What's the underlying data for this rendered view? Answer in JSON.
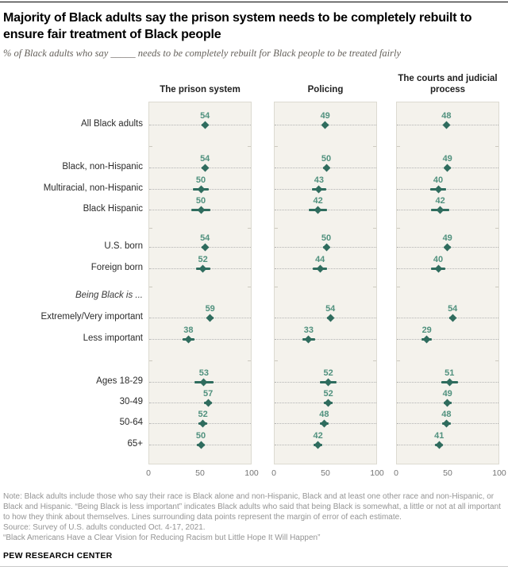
{
  "header": {
    "title": "Majority of Black adults say the prison system needs to be completely rebuilt to ensure fair treatment of Black people",
    "subtitle": "% of Black adults who say _____ needs to be completely rebuilt for Black people to be treated fairly"
  },
  "colors": {
    "accent_marker": "#2f6c5e",
    "accent_value_text": "#50917e",
    "panel_bg": "#f4f2ec",
    "panel_border": "#dcdad1"
  },
  "chart_data": {
    "type": "scatter",
    "subtype": "dot-plot-with-margin-of-error",
    "panels": [
      "The prison system",
      "Policing",
      "The courts and judicial process"
    ],
    "xlim": [
      0,
      100
    ],
    "x_ticks": [
      "0",
      "50",
      "100"
    ],
    "rows": [
      {
        "label": "All Black adults",
        "values": [
          54,
          49,
          48
        ],
        "moe": [
          3,
          3,
          3
        ]
      },
      {
        "label": "Black, non-Hispanic",
        "values": [
          54,
          50,
          49
        ],
        "moe": [
          3,
          3,
          3
        ]
      },
      {
        "label": "Multiracial, non-Hispanic",
        "values": [
          50,
          43,
          40
        ],
        "moe": [
          8,
          7,
          8
        ]
      },
      {
        "label": "Black Hispanic",
        "values": [
          50,
          42,
          42
        ],
        "moe": [
          9,
          9,
          9
        ]
      },
      {
        "label": "U.S. born",
        "values": [
          54,
          50,
          49
        ],
        "moe": [
          3,
          3,
          3
        ]
      },
      {
        "label": "Foreign born",
        "values": [
          52,
          44,
          40
        ],
        "moe": [
          7,
          7,
          7
        ]
      },
      {
        "label": "Being Black is ...",
        "italic": true,
        "values": null,
        "moe": null
      },
      {
        "label": "Extremely/Very important",
        "values": [
          59,
          54,
          54
        ],
        "moe": [
          3,
          3,
          3
        ]
      },
      {
        "label": "Less important",
        "values": [
          38,
          33,
          29
        ],
        "moe": [
          6,
          6,
          5
        ]
      },
      {
        "label": "Ages 18-29",
        "values": [
          53,
          52,
          51
        ],
        "moe": [
          9,
          8,
          8
        ]
      },
      {
        "label": "30-49",
        "values": [
          57,
          52,
          49
        ],
        "moe": [
          4,
          4,
          4
        ]
      },
      {
        "label": "50-64",
        "values": [
          52,
          48,
          48
        ],
        "moe": [
          4,
          4,
          4
        ]
      },
      {
        "label": "65+",
        "values": [
          50,
          42,
          41
        ],
        "moe": [
          4,
          4,
          4
        ]
      }
    ],
    "legend_note": "Lines surrounding data points represent the margin of error of each estimate"
  },
  "footer": {
    "note": "Note: Black adults include those who say their race is Black alone and non-Hispanic, Black and at least one other race and non-Hispanic, or Black and Hispanic. “Being Black is less important” indicates Black adults who said that being Black is somewhat, a little or not at all important to how they think about themselves. Lines surrounding data points represent the margin of error of each estimate.",
    "source": "Source: Survey of U.S. adults conducted Oct. 4-17, 2021.",
    "quote": "“Black Americans Have a Clear Vision for Reducing Racism but Little Hope It Will Happen”",
    "brand": "PEW RESEARCH CENTER"
  }
}
